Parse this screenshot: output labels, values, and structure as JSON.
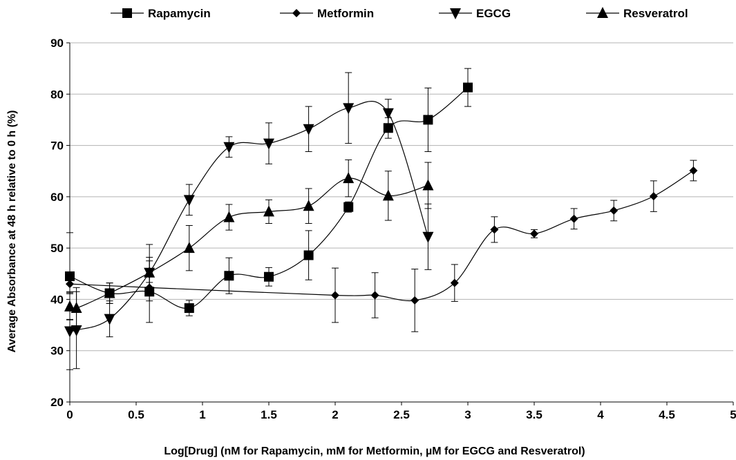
{
  "chart_data": {
    "type": "scatter",
    "xlabel": "Log[Drug] (nM for Rapamycin, mM for Metformin, µM for EGCG and Resveratrol)",
    "ylabel": "Average Absorbance at 48 h relative to 0 h (%)",
    "xlim": [
      0,
      5
    ],
    "ylim": [
      20,
      90
    ],
    "xticks": [
      "0",
      "0.5",
      "1",
      "1.5",
      "2",
      "2.5",
      "3",
      "3.5",
      "4",
      "4.5",
      "5"
    ],
    "xtick_values": [
      0,
      0.5,
      1,
      1.5,
      2,
      2.5,
      3,
      3.5,
      4,
      4.5,
      5
    ],
    "yticks": [
      "20",
      "30",
      "40",
      "50",
      "60",
      "70",
      "80",
      "90"
    ],
    "ytick_values": [
      20,
      30,
      40,
      50,
      60,
      70,
      80,
      90
    ],
    "grid": "horizontal",
    "legend_position": "top",
    "smooth_lines": true,
    "series": [
      {
        "name": "Rapamycin",
        "marker": "square",
        "x": [
          0,
          0.3,
          0.6,
          0.9,
          1.2,
          1.5,
          1.8,
          2.1,
          2.4,
          2.7,
          3.0
        ],
        "y": [
          44.5,
          41.2,
          41.5,
          38.3,
          44.6,
          44.4,
          48.6,
          58.0,
          73.4,
          75.0,
          81.3
        ],
        "err": [
          8.5,
          2.0,
          6.0,
          1.5,
          3.5,
          1.8,
          4.8,
          1.0,
          2.0,
          6.2,
          3.7
        ]
      },
      {
        "name": "Metformin",
        "marker": "diamond",
        "x": [
          0,
          0.6,
          2.0,
          2.3,
          2.6,
          2.9,
          3.2,
          3.5,
          3.8,
          4.1,
          4.4,
          4.7
        ],
        "y": [
          43.0,
          42.3,
          40.8,
          40.8,
          39.8,
          43.2,
          53.6,
          52.8,
          55.7,
          57.3,
          60.1,
          65.1
        ],
        "err": [
          1.5,
          1.0,
          5.3,
          4.4,
          6.1,
          3.6,
          2.5,
          0.8,
          2.0,
          2.0,
          3.0,
          2.0
        ]
      },
      {
        "name": "EGCG",
        "marker": "triangle-down",
        "x": [
          0,
          0.05,
          0.3,
          0.6,
          0.9,
          1.2,
          1.5,
          1.8,
          2.1,
          2.4,
          2.7
        ],
        "y": [
          33.8,
          34.0,
          36.2,
          45.2,
          59.4,
          69.7,
          70.4,
          73.2,
          77.3,
          76.3,
          52.2
        ],
        "err": [
          7.5,
          7.5,
          3.5,
          5.5,
          3.0,
          2.0,
          4.0,
          4.4,
          6.9,
          2.7,
          6.4
        ]
      },
      {
        "name": "Resveratrol",
        "marker": "triangle-up",
        "x": [
          0,
          0.05,
          0.3,
          0.6,
          0.9,
          1.2,
          1.5,
          1.8,
          2.1,
          2.4,
          2.7
        ],
        "y": [
          38.6,
          38.3,
          41.2,
          45.2,
          50.0,
          56.0,
          57.1,
          58.2,
          63.6,
          60.2,
          62.2
        ],
        "err": [
          2.5,
          4.0,
          2.0,
          3.0,
          4.4,
          2.5,
          2.3,
          3.4,
          3.6,
          4.8,
          4.5
        ]
      }
    ]
  }
}
